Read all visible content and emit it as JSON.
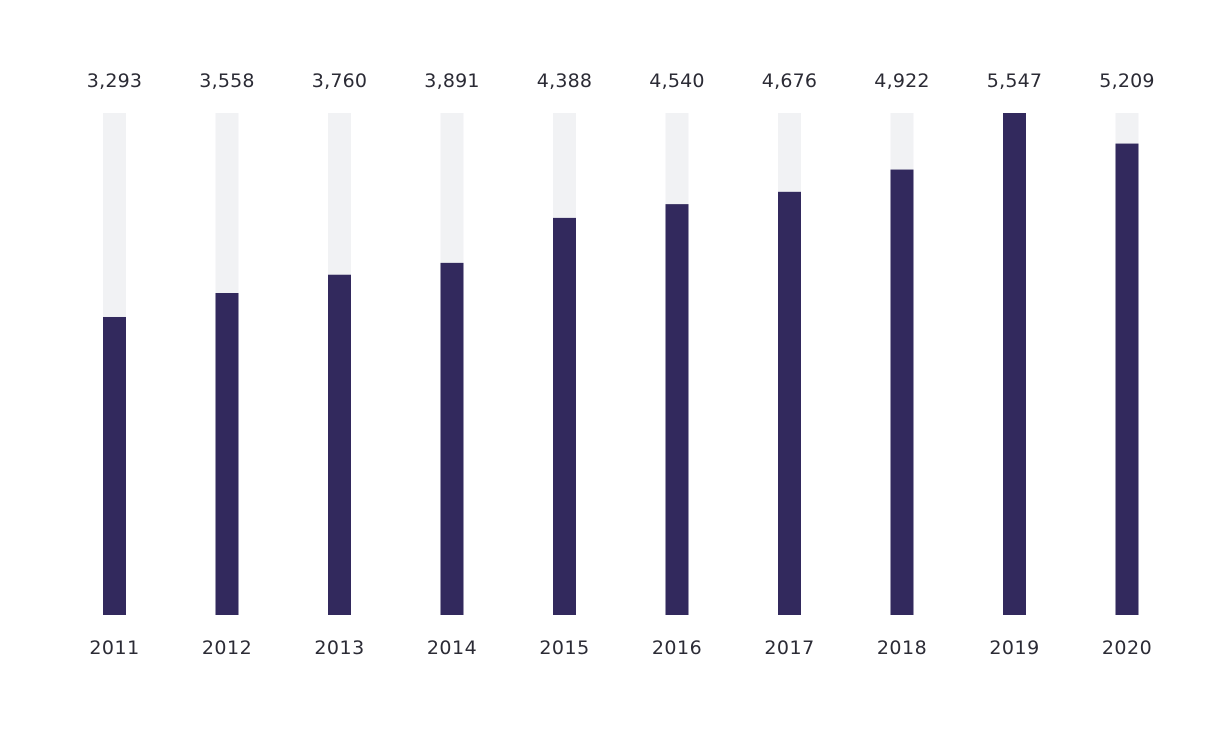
{
  "chart_data": {
    "type": "bar",
    "categories": [
      "2011",
      "2012",
      "2013",
      "2014",
      "2015",
      "2016",
      "2017",
      "2018",
      "2019",
      "2020"
    ],
    "values": [
      3293,
      3558,
      3760,
      3891,
      4388,
      4540,
      4676,
      4922,
      5547,
      5209
    ],
    "value_labels": [
      "3,293",
      "3,558",
      "3,760",
      "3,891",
      "4,388",
      "4,540",
      "4,676",
      "4,922",
      "5,547",
      "5,209"
    ],
    "ylim": [
      0,
      5547
    ],
    "grid": false,
    "legend": "none",
    "title": "",
    "xlabel": "",
    "ylabel": ""
  },
  "colors": {
    "bar": "#32295d",
    "track": "#f1f2f4",
    "text": "#2b2b35",
    "background": "#ffffff"
  }
}
